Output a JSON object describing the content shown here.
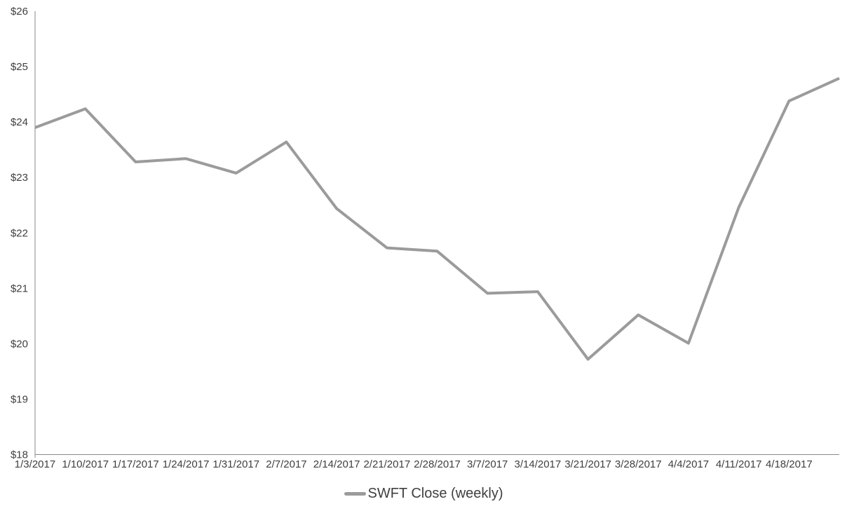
{
  "chart_data": {
    "type": "line",
    "title": "",
    "legend": "SWFT Close (weekly)",
    "legend_position": "bottom",
    "categories": [
      "1/3/2017",
      "1/10/2017",
      "1/17/2017",
      "1/24/2017",
      "1/31/2017",
      "2/7/2017",
      "2/14/2017",
      "2/21/2017",
      "2/28/2017",
      "3/7/2017",
      "3/14/2017",
      "3/21/2017",
      "3/28/2017",
      "4/4/2017",
      "4/11/2017",
      "4/18/2017",
      ""
    ],
    "values": [
      23.9,
      24.24,
      23.28,
      23.34,
      23.08,
      23.64,
      22.44,
      21.73,
      21.67,
      20.91,
      20.94,
      19.72,
      20.52,
      20.01,
      22.46,
      24.38,
      24.79
    ],
    "ylim": [
      18,
      26
    ],
    "ytick_step": 1,
    "ytick_prefix": "$",
    "xlabel": "",
    "ylabel": "",
    "grid": false,
    "series_color": "#9B9B9B",
    "axis_color": "#8A8A8A",
    "label_color": "#3F3F3F"
  }
}
